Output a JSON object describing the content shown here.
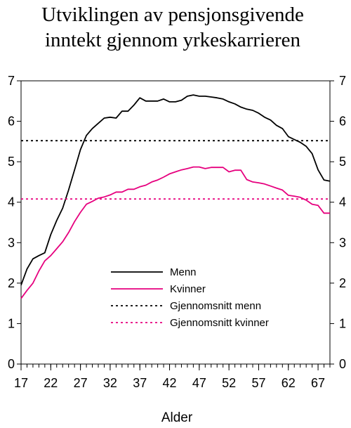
{
  "chart_data": {
    "type": "line",
    "title_lines": [
      "Utviklingen av pensjonsgivende",
      "inntekt  gjennom yrkeskarrieren"
    ],
    "xlabel": "Alder",
    "ylabel": "",
    "x_ticks": [
      17,
      22,
      27,
      32,
      37,
      42,
      47,
      52,
      57,
      62,
      67
    ],
    "y_ticks": [
      0,
      1,
      2,
      3,
      4,
      5,
      6,
      7
    ],
    "xlim": [
      17,
      69
    ],
    "ylim": [
      0,
      7
    ],
    "secondary_y_axis": true,
    "grid": false,
    "legend_position": "lower-center",
    "series": [
      {
        "name": "Menn",
        "color": "#000000",
        "style": "solid",
        "x": [
          17,
          18,
          19,
          20,
          21,
          22,
          23,
          24,
          25,
          26,
          27,
          28,
          29,
          30,
          31,
          32,
          33,
          34,
          35,
          36,
          37,
          38,
          39,
          40,
          41,
          42,
          43,
          44,
          45,
          46,
          47,
          48,
          49,
          50,
          51,
          52,
          53,
          54,
          55,
          56,
          57,
          58,
          59,
          60,
          61,
          62,
          63,
          64,
          65,
          66,
          67,
          68,
          69
        ],
        "values": [
          1.95,
          2.35,
          2.6,
          2.68,
          2.75,
          3.2,
          3.55,
          3.85,
          4.3,
          4.8,
          5.3,
          5.65,
          5.82,
          5.95,
          6.08,
          6.1,
          6.08,
          6.25,
          6.25,
          6.4,
          6.58,
          6.5,
          6.5,
          6.5,
          6.55,
          6.48,
          6.48,
          6.52,
          6.62,
          6.65,
          6.62,
          6.62,
          6.6,
          6.58,
          6.55,
          6.48,
          6.43,
          6.35,
          6.3,
          6.27,
          6.2,
          6.1,
          6.03,
          5.9,
          5.82,
          5.62,
          5.55,
          5.48,
          5.38,
          5.2,
          4.8,
          4.55,
          4.52
        ]
      },
      {
        "name": "Kvinner",
        "color": "#e6007e",
        "style": "solid",
        "x": [
          17,
          18,
          19,
          20,
          21,
          22,
          23,
          24,
          25,
          26,
          27,
          28,
          29,
          30,
          31,
          32,
          33,
          34,
          35,
          36,
          37,
          38,
          39,
          40,
          41,
          42,
          43,
          44,
          45,
          46,
          47,
          48,
          49,
          50,
          51,
          52,
          53,
          54,
          55,
          56,
          57,
          58,
          59,
          60,
          61,
          62,
          63,
          64,
          65,
          66,
          67,
          68,
          69
        ],
        "values": [
          1.62,
          1.82,
          2.0,
          2.3,
          2.55,
          2.68,
          2.85,
          3.02,
          3.25,
          3.52,
          3.75,
          3.95,
          4.02,
          4.1,
          4.13,
          4.18,
          4.25,
          4.25,
          4.32,
          4.32,
          4.38,
          4.42,
          4.5,
          4.55,
          4.62,
          4.7,
          4.75,
          4.8,
          4.83,
          4.87,
          4.87,
          4.83,
          4.86,
          4.86,
          4.86,
          4.75,
          4.79,
          4.79,
          4.56,
          4.5,
          4.48,
          4.45,
          4.4,
          4.35,
          4.3,
          4.17,
          4.15,
          4.12,
          4.05,
          3.95,
          3.92,
          3.73,
          3.73
        ]
      },
      {
        "name": "Gjennomsnitt menn",
        "color": "#000000",
        "style": "dotted",
        "x": [
          17,
          69
        ],
        "values": [
          5.52,
          5.52
        ]
      },
      {
        "name": "Gjennomsnitt kvinner",
        "color": "#e6007e",
        "style": "dotted",
        "x": [
          17,
          69
        ],
        "values": [
          4.08,
          4.08
        ]
      }
    ]
  }
}
